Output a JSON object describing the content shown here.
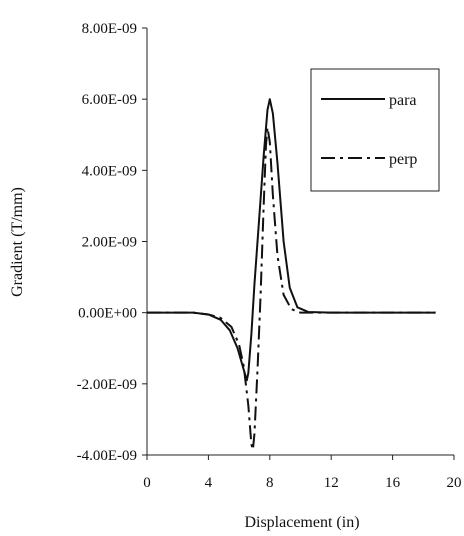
{
  "chart_data": {
    "type": "line",
    "title": "",
    "xlabel": "Displacement (in)",
    "ylabel": "Gradient (T/mm)",
    "xlim": [
      0,
      20
    ],
    "ylim": [
      -4e-09,
      8e-09
    ],
    "x_ticks": [
      0,
      4,
      8,
      12,
      16,
      20
    ],
    "x_tick_labels": [
      "0",
      "4",
      "8",
      "12",
      "16",
      "20"
    ],
    "y_ticks": [
      -4e-09,
      -2e-09,
      0,
      2e-09,
      4e-09,
      6e-09,
      8e-09
    ],
    "y_tick_labels": [
      "-4.00E-09",
      "-2.00E-09",
      "0.00E+00",
      "2.00E-09",
      "4.00E-09",
      "6.00E-09",
      "8.00E-09"
    ],
    "grid": false,
    "legend": "top-right",
    "series": [
      {
        "name": "para",
        "style": "solid",
        "color": "#111111",
        "points": [
          [
            0,
            0
          ],
          [
            3,
            0
          ],
          [
            4,
            -5e-11
          ],
          [
            4.8,
            -2e-10
          ],
          [
            5.4,
            -5e-10
          ],
          [
            5.9,
            -1e-09
          ],
          [
            6.3,
            -1.6e-09
          ],
          [
            6.5,
            -1.9e-09
          ],
          [
            6.6,
            -1.7e-09
          ],
          [
            6.8,
            -6e-10
          ],
          [
            7.0,
            8e-10
          ],
          [
            7.3,
            2.6e-09
          ],
          [
            7.6,
            4.4e-09
          ],
          [
            7.85,
            5.7e-09
          ],
          [
            8.0,
            6e-09
          ],
          [
            8.2,
            5.6e-09
          ],
          [
            8.5,
            4.2e-09
          ],
          [
            8.9,
            2e-09
          ],
          [
            9.3,
            7e-10
          ],
          [
            9.8,
            1.5e-10
          ],
          [
            10.5,
            2e-11
          ],
          [
            12,
            0
          ],
          [
            14,
            0
          ],
          [
            16,
            0
          ],
          [
            18,
            0
          ],
          [
            18.8,
            0
          ]
        ]
      },
      {
        "name": "perp",
        "style": "dash-dot",
        "color": "#111111",
        "points": [
          [
            0,
            0
          ],
          [
            3,
            0
          ],
          [
            4,
            -5e-11
          ],
          [
            4.8,
            -1.5e-10
          ],
          [
            5.5,
            -4e-10
          ],
          [
            6.0,
            -9e-10
          ],
          [
            6.3,
            -1.5e-09
          ],
          [
            6.6,
            -2.6e-09
          ],
          [
            6.8,
            -3.7e-09
          ],
          [
            6.9,
            -3.85e-09
          ],
          [
            7.0,
            -3.4e-09
          ],
          [
            7.2,
            -1.6e-09
          ],
          [
            7.4,
            5e-10
          ],
          [
            7.6,
            3e-09
          ],
          [
            7.75,
            4.7e-09
          ],
          [
            7.85,
            5.2e-09
          ],
          [
            8.0,
            4.8e-09
          ],
          [
            8.2,
            3.3e-09
          ],
          [
            8.5,
            1.6e-09
          ],
          [
            8.9,
            5e-10
          ],
          [
            9.4,
            1e-10
          ],
          [
            10,
            0
          ],
          [
            12,
            0
          ],
          [
            14,
            0
          ],
          [
            16,
            0
          ],
          [
            18,
            0
          ],
          [
            18.8,
            0
          ]
        ]
      }
    ]
  }
}
